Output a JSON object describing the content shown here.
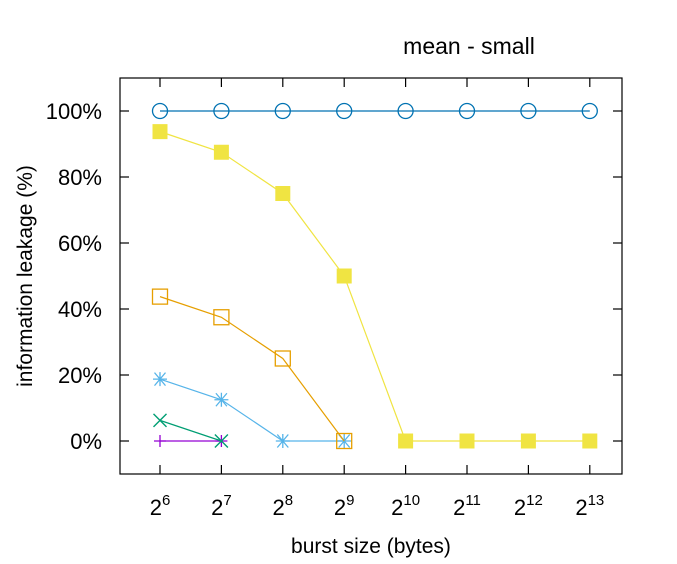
{
  "chart_data": {
    "type": "line",
    "title": "mean - small",
    "xlabel": "burst size (bytes)",
    "ylabel": "information leakage (%)",
    "x_base": "2",
    "x_exponents": [
      "6",
      "7",
      "8",
      "9",
      "10",
      "11",
      "12",
      "13"
    ],
    "x": [
      64,
      128,
      256,
      512,
      1024,
      2048,
      4096,
      8192
    ],
    "x_scale": "log2",
    "ylim": [
      -10,
      110
    ],
    "yticks": [
      0,
      20,
      40,
      60,
      80,
      100
    ],
    "ytick_labels": [
      "0%",
      "20%",
      "40%",
      "60%",
      "80%",
      "100%"
    ],
    "grid": false,
    "legend": "none",
    "series": [
      {
        "color": "#0072b2",
        "marker": "open-circle",
        "values": [
          100,
          100,
          100,
          100,
          100,
          100,
          100,
          100
        ]
      },
      {
        "color": "#f0e442",
        "marker": "filled-square",
        "values": [
          93.75,
          87.5,
          75,
          50,
          0,
          0,
          0,
          0
        ]
      },
      {
        "color": "#e69f00",
        "marker": "open-square",
        "values": [
          43.75,
          37.5,
          25,
          0,
          null,
          null,
          null,
          null
        ]
      },
      {
        "color": "#56b4e9",
        "marker": "asterisk",
        "values": [
          18.75,
          12.5,
          0,
          0,
          null,
          null,
          null,
          null
        ]
      },
      {
        "color": "#009e73",
        "marker": "x",
        "values": [
          6.25,
          0,
          null,
          null,
          null,
          null,
          null,
          null
        ]
      },
      {
        "color": "#9400d3",
        "marker": "plus",
        "values": [
          0,
          0,
          null,
          null,
          null,
          null,
          null,
          null
        ]
      }
    ]
  }
}
